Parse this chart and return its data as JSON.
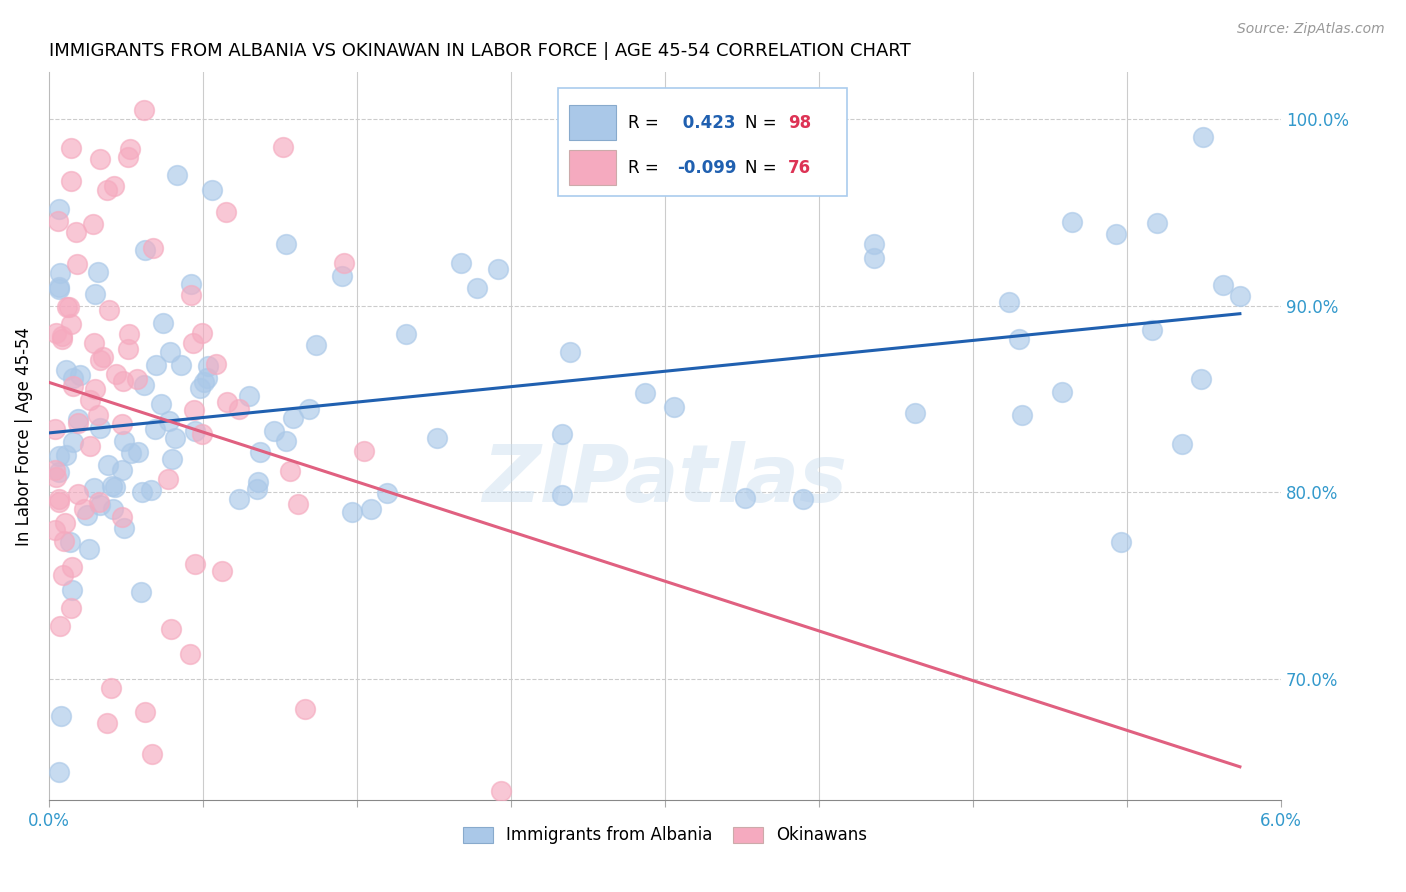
{
  "title": "IMMIGRANTS FROM ALBANIA VS OKINAWAN IN LABOR FORCE | AGE 45-54 CORRELATION CHART",
  "source": "Source: ZipAtlas.com",
  "ylabel": "In Labor Force | Age 45-54",
  "ylabel_ticks": [
    "70.0%",
    "80.0%",
    "90.0%",
    "100.0%"
  ],
  "ylabel_tick_vals": [
    0.7,
    0.8,
    0.9,
    1.0
  ],
  "xlim": [
    0.0,
    0.06
  ],
  "ylim": [
    0.635,
    1.025
  ],
  "r_albania": 0.423,
  "n_albania": 98,
  "r_okinawan": -0.099,
  "n_okinawan": 76,
  "color_albania": "#aac8e8",
  "color_okinawan": "#f5aabf",
  "trend_albania": "#2060b0",
  "trend_okinawan": "#e06080",
  "watermark": "ZIPatlas",
  "legend_r_color": "#2060b0",
  "legend_n_color": "#dd3355",
  "legend_label_color": "#2060b0"
}
